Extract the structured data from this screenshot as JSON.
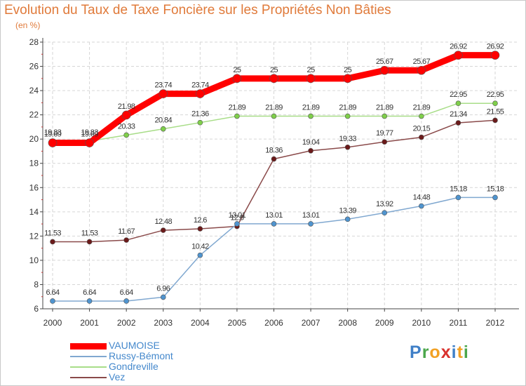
{
  "title": "Evolution du Taux de Taxe Foncière sur les Propriétés Non Bâties",
  "unit": "(en %)",
  "logo": {
    "letters": [
      "P",
      "r",
      "o",
      "x",
      "i",
      "t",
      "i"
    ],
    "colors": [
      "#3f7fc7",
      "#4ba74b",
      "#f2a124",
      "#d9322e",
      "#3f7fc7",
      "#f2a124",
      "#4ba74b"
    ]
  },
  "chart_data": {
    "type": "line",
    "title": "Evolution du Taux de Taxe Foncière sur les Propriétés Non Bâties",
    "ylabel": "(en %)",
    "xlabel": "",
    "x": [
      "2000",
      "2001",
      "2002",
      "2003",
      "2004",
      "2005",
      "2006",
      "2007",
      "2008",
      "2009",
      "2010",
      "2011",
      "2012"
    ],
    "ylim": [
      6,
      28
    ],
    "yticks": [
      6,
      8,
      10,
      12,
      14,
      16,
      18,
      20,
      22,
      24,
      26,
      28
    ],
    "grid": true,
    "legend_position": "bottom-left",
    "series": [
      {
        "name": "VAUMOISE",
        "color": "#ff0000",
        "marker": "#ff0000",
        "values": [
          19.69,
          19.69,
          21.98,
          23.74,
          23.74,
          25,
          25,
          25,
          25,
          25.67,
          25.67,
          26.92,
          26.92
        ],
        "labels": [
          "19.69",
          "19.69",
          "21.98",
          "23.74",
          "23.74",
          "25",
          "25",
          "25",
          "25",
          "25.67",
          "25.67",
          "26.92",
          "26.92"
        ]
      },
      {
        "name": "Russy-Bémont",
        "color": "#80a8d0",
        "marker": "#4f94cf",
        "values": [
          6.64,
          6.64,
          6.64,
          6.96,
          10.42,
          13.01,
          13.01,
          13.01,
          13.39,
          13.92,
          14.48,
          15.18,
          15.18
        ],
        "labels": [
          "6.64",
          "6.64",
          "6.64",
          "6.96",
          "10.42",
          "13.01",
          "13.01",
          "13.01",
          "13.39",
          "13.92",
          "14.48",
          "15.18",
          "15.18"
        ]
      },
      {
        "name": "Gondreville",
        "color": "#a8dd88",
        "marker": "#7fcf4a",
        "values": [
          19.83,
          19.83,
          20.33,
          20.84,
          21.36,
          21.89,
          21.89,
          21.89,
          21.89,
          21.89,
          21.89,
          22.95,
          22.95
        ],
        "labels": [
          "19.83",
          "19.83",
          "20.33",
          "20.84",
          "21.36",
          "21.89",
          "21.89",
          "21.89",
          "21.89",
          "21.89",
          "21.89",
          "22.95",
          "22.95"
        ]
      },
      {
        "name": "Vez",
        "color": "#8a4a4a",
        "marker": "#6b1a1a",
        "values": [
          11.53,
          11.53,
          11.67,
          12.48,
          12.6,
          12.8,
          18.36,
          19.04,
          19.33,
          19.77,
          20.15,
          21.34,
          21.55
        ],
        "labels": [
          "11.53",
          "11.53",
          "11.67",
          "12.48",
          "12.6",
          "12.8",
          "18.36",
          "19.04",
          "19.33",
          "19.77",
          "20.15",
          "21.34",
          "21.55"
        ]
      }
    ]
  }
}
